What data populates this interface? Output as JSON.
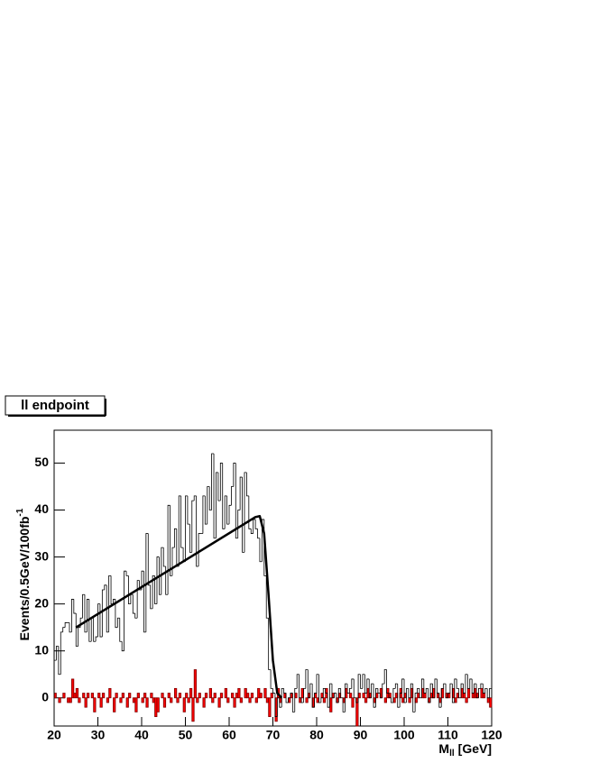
{
  "chart_data": {
    "type": "histogram",
    "title": "ll endpoint",
    "x_label": "M",
    "x_label_sub": "ll",
    "x_label_unit": "[GeV]",
    "y_label": "Events/0.5GeV/100fb",
    "y_label_sup": "-1",
    "xlim": [
      20,
      120
    ],
    "ylim": [
      -6,
      57
    ],
    "xticks": [
      20,
      30,
      40,
      50,
      60,
      70,
      80,
      90,
      100,
      110,
      120
    ],
    "yticks": [
      0,
      10,
      20,
      30,
      40,
      50
    ],
    "bins": [
      20,
      20.5,
      21,
      21.5,
      22,
      22.5,
      23,
      23.5,
      24,
      24.5,
      25,
      25.5,
      26,
      26.5,
      27,
      27.5,
      28,
      28.5,
      29,
      29.5,
      30,
      30.5,
      31,
      31.5,
      32,
      32.5,
      33,
      33.5,
      34,
      34.5,
      35,
      35.5,
      36,
      36.5,
      37,
      37.5,
      38,
      38.5,
      39,
      39.5,
      40,
      40.5,
      41,
      41.5,
      42,
      42.5,
      43,
      43.5,
      44,
      44.5,
      45,
      45.5,
      46,
      46.5,
      47,
      47.5,
      48,
      48.5,
      49,
      49.5,
      50,
      50.5,
      51,
      51.5,
      52,
      52.5,
      53,
      53.5,
      54,
      54.5,
      55,
      55.5,
      56,
      56.5,
      57,
      57.5,
      58,
      58.5,
      59,
      59.5,
      60,
      60.5,
      61,
      61.5,
      62,
      62.5,
      63,
      63.5,
      64,
      64.5,
      65,
      65.5,
      66,
      66.5,
      67,
      67.5,
      68,
      68.5,
      69,
      69.5,
      70,
      70.5,
      71,
      71.5,
      72,
      72.5,
      73,
      73.5,
      74,
      74.5,
      75,
      75.5,
      76,
      76.5,
      77,
      77.5,
      78,
      78.5,
      79,
      79.5,
      80,
      80.5,
      81,
      81.5,
      82,
      82.5,
      83,
      83.5,
      84,
      84.5,
      85,
      85.5,
      86,
      86.5,
      87,
      87.5,
      88,
      88.5,
      89,
      89.5,
      90,
      90.5,
      91,
      91.5,
      92,
      92.5,
      93,
      93.5,
      94,
      94.5,
      95,
      95.5,
      96,
      96.5,
      97,
      97.5,
      98,
      98.5,
      99,
      99.5,
      100,
      100.5,
      101,
      101.5,
      102,
      102.5,
      103,
      103.5,
      104,
      104.5,
      105,
      105.5,
      106,
      106.5,
      107,
      107.5,
      108,
      108.5,
      109,
      109.5,
      110,
      110.5,
      111,
      111.5,
      112,
      112.5,
      113,
      113.5,
      114,
      114.5,
      115,
      115.5,
      116,
      116.5,
      117,
      117.5,
      118,
      118.5,
      119,
      119.5,
      120
    ],
    "series": [
      {
        "color": "#000000",
        "values": [
          8,
          11,
          5,
          14,
          15,
          16,
          16,
          14,
          21,
          18,
          11,
          15,
          17,
          22,
          14,
          21,
          12,
          17,
          12,
          13,
          20,
          13,
          23,
          24,
          14,
          26,
          20,
          21,
          15,
          17,
          12,
          10,
          27,
          26,
          20,
          22,
          18,
          17,
          25,
          23,
          27,
          14,
          35,
          24,
          19,
          26,
          20,
          30,
          22,
          32,
          28,
          22,
          41,
          26,
          32,
          36,
          28,
          43,
          32,
          29,
          43,
          37,
          31,
          42,
          43,
          28,
          35,
          35,
          43,
          37,
          45,
          40,
          52,
          34,
          48,
          42,
          50,
          36,
          43,
          37,
          41,
          45,
          50,
          34,
          40,
          47,
          31,
          48,
          43,
          36,
          35,
          38,
          36,
          34,
          29,
          38,
          26,
          17,
          6,
          2,
          1,
          -4,
          0,
          -2,
          2,
          1,
          -1,
          0,
          1,
          -3,
          2,
          5,
          0,
          -1,
          2,
          6,
          0,
          3,
          -2,
          1,
          5,
          -1,
          0,
          2,
          1,
          -2,
          3,
          0,
          1,
          -1,
          2,
          0,
          -3,
          3,
          1,
          2,
          4,
          0,
          -1,
          5,
          2,
          5,
          1,
          4,
          0,
          3,
          -2,
          2,
          1,
          0,
          3,
          6,
          1,
          0,
          -1,
          2,
          3,
          -2,
          1,
          4,
          -1,
          2,
          0,
          3,
          -3,
          1,
          2,
          0,
          4,
          1,
          2,
          -1,
          3,
          0,
          4,
          1,
          -2,
          2,
          3,
          0,
          1,
          3,
          -1,
          4,
          2,
          0,
          3,
          1,
          5,
          2,
          4,
          1,
          3,
          0,
          2,
          3,
          1,
          2,
          0,
          2
        ]
      },
      {
        "color": "#ff0000",
        "values": [
          1,
          0,
          -1,
          0,
          1,
          0,
          -1,
          -1,
          4,
          1,
          2,
          -1,
          0,
          1,
          -2,
          1,
          0,
          1,
          -3,
          0,
          1,
          -2,
          1,
          0,
          -1,
          2,
          0,
          -3,
          1,
          0,
          -1,
          1,
          0,
          -2,
          1,
          0,
          -1,
          -3,
          1,
          0,
          -1,
          1,
          -2,
          0,
          1,
          -1,
          -4,
          -3,
          0,
          1,
          -2,
          0,
          1,
          -1,
          0,
          2,
          -1,
          1,
          0,
          -3,
          1,
          -1,
          2,
          -5,
          6,
          -1,
          1,
          0,
          -2,
          1,
          0,
          2,
          -1,
          1,
          0,
          -2,
          1,
          0,
          2,
          -1,
          0,
          1,
          -2,
          1,
          2,
          -1,
          0,
          2,
          1,
          -1,
          1,
          0,
          -1,
          2,
          1,
          0,
          2,
          -1,
          -4,
          1,
          0,
          -5,
          2,
          -1,
          0,
          1,
          0,
          -1,
          1,
          0,
          1,
          0,
          -1,
          2,
          0,
          -1,
          1,
          0,
          -2,
          1,
          -1,
          0,
          1,
          -1,
          2,
          0,
          -3,
          1,
          0,
          -1,
          1,
          0,
          -1,
          2,
          0,
          1,
          -2,
          0,
          -6,
          1,
          0,
          1,
          -1,
          2,
          1,
          0,
          -1,
          1,
          0,
          2,
          0,
          -1,
          2,
          1,
          0,
          -1,
          1,
          0,
          2,
          -1,
          1,
          0,
          -1,
          2,
          0,
          -1,
          1,
          0,
          2,
          1,
          0,
          -1,
          1,
          2,
          0,
          1,
          -1,
          2,
          0,
          1,
          1,
          0,
          2,
          -1,
          1,
          0,
          2,
          1,
          -1,
          2,
          0,
          1,
          2,
          1,
          0,
          2,
          1,
          0,
          -1,
          -2
        ]
      }
    ],
    "fit": {
      "color": "#000000",
      "x": [
        25,
        66,
        67,
        68,
        69,
        70,
        71,
        72
      ],
      "values": [
        15,
        38.5,
        38.7,
        35,
        22,
        8,
        1,
        0
      ]
    }
  }
}
